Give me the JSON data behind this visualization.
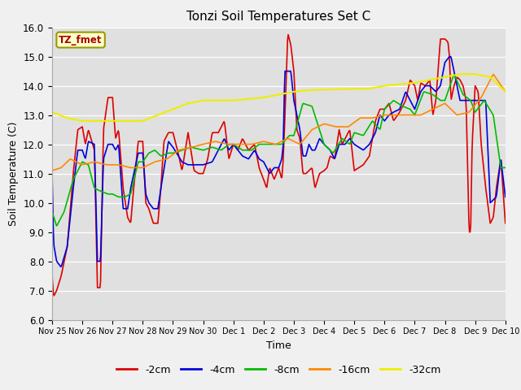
{
  "title": "Tonzi Soil Temperatures Set C",
  "xlabel": "Time",
  "ylabel": "Soil Temperature (C)",
  "ylim": [
    6.0,
    16.0
  ],
  "yticks": [
    6.0,
    7.0,
    8.0,
    9.0,
    10.0,
    11.0,
    12.0,
    13.0,
    14.0,
    15.0,
    16.0
  ],
  "colors": {
    "-2cm": "#dd0000",
    "-4cm": "#0000dd",
    "-8cm": "#00bb00",
    "-16cm": "#ff8800",
    "-32cm": "#eeee00"
  },
  "legend_label": "TZ_fmet",
  "x_tick_labels": [
    "Nov 25",
    "Nov 26",
    "Nov 27",
    "Nov 28",
    "Nov 29",
    "Nov 30",
    "Dec 1",
    "Dec 2",
    "Dec 3",
    "Dec 4",
    "Dec 5",
    "Dec 6",
    "Dec 7",
    "Dec 8",
    "Dec 9",
    "Dec 10"
  ],
  "fig_bg_color": "#f0f0f0",
  "plot_bg_color": "#e0e0e0",
  "annotation_box_color": "#ffffcc",
  "annotation_text_color": "#aa0000",
  "annotation_border_color": "#999900"
}
